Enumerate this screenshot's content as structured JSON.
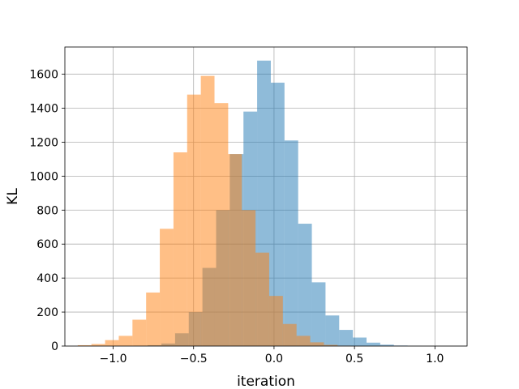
{
  "chart_data": {
    "type": "bar",
    "subtype": "overlapping-histogram",
    "title": "",
    "xlabel": "iteration",
    "ylabel": "KL",
    "xlim": [
      -1.3,
      1.2
    ],
    "ylim": [
      0,
      1760
    ],
    "xticks": [
      -1.0,
      -0.5,
      0.0,
      0.5,
      1.0
    ],
    "xtick_labels": [
      "−1.0",
      "−0.5",
      "0.0",
      "0.5",
      "1.0"
    ],
    "yticks": [
      0,
      200,
      400,
      600,
      800,
      1000,
      1200,
      1400,
      1600
    ],
    "ytick_labels": [
      "0",
      "200",
      "400",
      "600",
      "800",
      "1000",
      "1200",
      "1400",
      "1600"
    ],
    "grid": true,
    "legend": "none",
    "series": [
      {
        "color": "#1f77b4",
        "opacity": 0.5,
        "bin_edges": [
          -0.87,
          -0.785,
          -0.7,
          -0.615,
          -0.53,
          -0.445,
          -0.36,
          -0.275,
          -0.19,
          -0.105,
          -0.02,
          0.065,
          0.15,
          0.235,
          0.32,
          0.405,
          0.49,
          0.575,
          0.66,
          0.745,
          0.83,
          0.915
        ],
        "values": [
          2,
          5,
          15,
          75,
          200,
          460,
          800,
          1130,
          1380,
          1680,
          1550,
          1210,
          720,
          375,
          180,
          95,
          50,
          20,
          8,
          3,
          1
        ]
      },
      {
        "color": "#ff7f0e",
        "opacity": 0.5,
        "bin_edges": [
          -1.22,
          -1.135,
          -1.05,
          -0.965,
          -0.88,
          -0.795,
          -0.71,
          -0.625,
          -0.54,
          -0.455,
          -0.37,
          -0.285,
          -0.2,
          -0.115,
          -0.03,
          0.055,
          0.14,
          0.225,
          0.31,
          0.395,
          0.48
        ],
        "values": [
          5,
          12,
          35,
          60,
          155,
          315,
          690,
          1140,
          1480,
          1590,
          1430,
          1130,
          800,
          550,
          295,
          130,
          60,
          22,
          7,
          2
        ]
      }
    ]
  }
}
